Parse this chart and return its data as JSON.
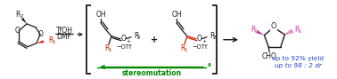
{
  "bg_color": "#ffffff",
  "black": "#1a1a1a",
  "red": "#cc2200",
  "pink": "#cc3399",
  "green": "#008800",
  "blue": "#2244cc",
  "reagents_line1": "TfOH",
  "reagents_line2": "DMF",
  "stereo_text": "stereomutation",
  "yield_line1": "up to 92% yield",
  "yield_line2": "up to 98 : 2 dr"
}
